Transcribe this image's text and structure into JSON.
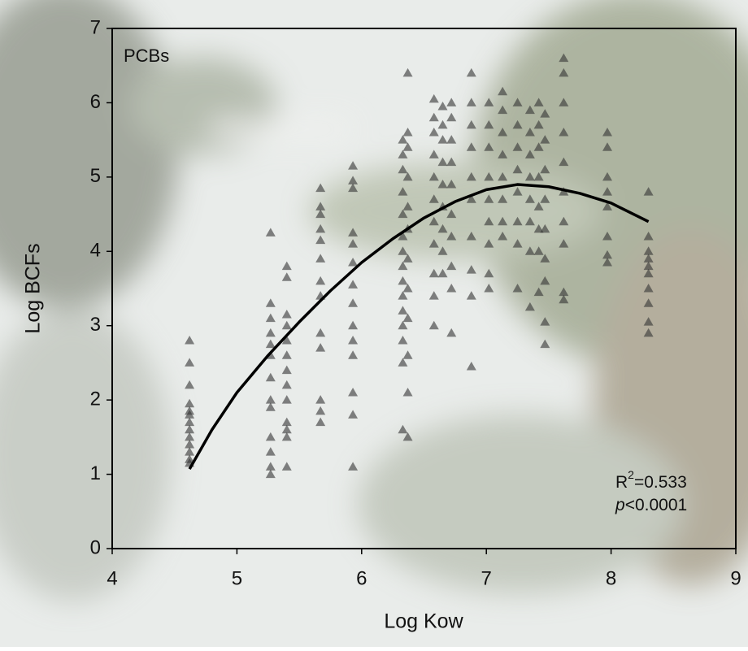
{
  "chart_data": {
    "type": "scatter",
    "annotation": "PCBs",
    "r_squared": {
      "symbol": "R",
      "exponent": "2",
      "text": "=0.533"
    },
    "p_value": {
      "symbol": "p",
      "text": "<0.0001"
    },
    "x_label": "Log Kow",
    "y_label": "Log BCFs",
    "xlim": [
      4,
      9
    ],
    "xticks": [
      4,
      5,
      6,
      7,
      8,
      9
    ],
    "ylim": [
      0,
      7
    ],
    "yticks": [
      0,
      1,
      2,
      3,
      4,
      5,
      6,
      7
    ],
    "color": "#333333",
    "x": [
      4.62,
      4.62,
      4.62,
      4.62,
      4.62,
      4.62,
      4.62,
      4.62,
      4.62,
      4.62,
      4.62,
      4.62,
      4.62,
      5.27,
      5.27,
      5.27,
      5.27,
      5.27,
      5.27,
      5.27,
      5.27,
      5.27,
      5.27,
      5.27,
      5.27,
      5.27,
      5.4,
      5.4,
      5.4,
      5.4,
      5.4,
      5.4,
      5.4,
      5.4,
      5.4,
      5.4,
      5.4,
      5.4,
      5.4,
      5.67,
      5.67,
      5.67,
      5.67,
      5.67,
      5.67,
      5.67,
      5.67,
      5.67,
      5.67,
      5.67,
      5.67,
      5.67,
      5.93,
      5.93,
      5.93,
      5.93,
      5.93,
      5.93,
      5.93,
      5.93,
      5.93,
      5.93,
      5.93,
      5.93,
      5.93,
      5.93,
      6.33,
      6.33,
      6.33,
      6.33,
      6.33,
      6.33,
      6.33,
      6.33,
      6.33,
      6.33,
      6.33,
      6.33,
      6.33,
      6.33,
      6.33,
      6.37,
      6.37,
      6.37,
      6.37,
      6.37,
      6.37,
      6.37,
      6.37,
      6.37,
      6.37,
      6.37,
      6.37,
      6.58,
      6.58,
      6.58,
      6.58,
      6.58,
      6.58,
      6.58,
      6.58,
      6.58,
      6.58,
      6.58,
      6.65,
      6.65,
      6.65,
      6.65,
      6.65,
      6.65,
      6.65,
      6.65,
      6.65,
      6.72,
      6.72,
      6.72,
      6.72,
      6.72,
      6.72,
      6.72,
      6.72,
      6.72,
      6.72,
      6.88,
      6.88,
      6.88,
      6.88,
      6.88,
      6.88,
      6.88,
      6.88,
      6.88,
      6.88,
      7.02,
      7.02,
      7.02,
      7.02,
      7.02,
      7.02,
      7.02,
      7.02,
      7.02,
      7.13,
      7.13,
      7.13,
      7.13,
      7.13,
      7.13,
      7.13,
      7.13,
      7.25,
      7.25,
      7.25,
      7.25,
      7.25,
      7.25,
      7.25,
      7.25,
      7.35,
      7.35,
      7.35,
      7.35,
      7.35,
      7.35,
      7.35,
      7.35,
      7.42,
      7.42,
      7.42,
      7.42,
      7.42,
      7.42,
      7.42,
      7.42,
      7.47,
      7.47,
      7.47,
      7.47,
      7.47,
      7.47,
      7.47,
      7.47,
      7.47,
      7.62,
      7.62,
      7.62,
      7.62,
      7.62,
      7.62,
      7.62,
      7.62,
      7.62,
      7.62,
      7.97,
      7.97,
      7.97,
      7.97,
      7.97,
      7.97,
      7.97,
      7.97,
      8.3,
      8.3,
      8.3,
      8.3,
      8.3,
      8.3,
      8.3,
      8.3,
      8.3,
      8.3
    ],
    "values": [
      2.8,
      2.5,
      2.2,
      1.95,
      1.85,
      1.8,
      1.7,
      1.6,
      1.5,
      1.4,
      1.3,
      1.2,
      1.15,
      4.25,
      3.3,
      3.1,
      2.9,
      2.75,
      2.6,
      2.3,
      2.0,
      1.9,
      1.5,
      1.3,
      1.1,
      1.0,
      3.8,
      3.65,
      3.15,
      3.0,
      2.8,
      2.6,
      2.4,
      2.2,
      2.0,
      1.7,
      1.6,
      1.5,
      1.1,
      4.85,
      4.6,
      4.5,
      4.3,
      4.15,
      3.9,
      3.6,
      3.4,
      2.9,
      2.7,
      2.0,
      1.85,
      1.7,
      5.15,
      4.95,
      4.85,
      4.25,
      4.1,
      3.85,
      3.55,
      3.3,
      3.0,
      2.8,
      2.6,
      2.1,
      1.8,
      1.1,
      5.5,
      5.3,
      5.1,
      4.8,
      4.5,
      4.2,
      4.0,
      3.8,
      3.6,
      3.4,
      3.2,
      3.0,
      2.8,
      2.5,
      1.6,
      6.4,
      5.6,
      5.4,
      5.0,
      4.6,
      4.3,
      3.9,
      3.5,
      3.1,
      2.6,
      2.1,
      1.5,
      6.05,
      5.8,
      5.6,
      5.3,
      5.0,
      4.7,
      4.4,
      4.1,
      3.7,
      3.4,
      3.0,
      5.95,
      5.7,
      5.5,
      5.2,
      4.9,
      4.6,
      4.3,
      4.0,
      3.7,
      6.0,
      5.8,
      5.5,
      5.2,
      4.9,
      4.5,
      4.2,
      3.8,
      3.5,
      2.9,
      6.4,
      6.0,
      5.7,
      5.4,
      5.0,
      4.7,
      4.2,
      3.75,
      3.4,
      2.45,
      6.0,
      5.7,
      5.4,
      5.0,
      4.7,
      4.4,
      4.1,
      3.7,
      3.5,
      6.15,
      5.9,
      5.6,
      5.3,
      5.0,
      4.7,
      4.4,
      4.2,
      6.0,
      5.7,
      5.4,
      5.1,
      4.8,
      4.4,
      4.1,
      3.5,
      5.9,
      5.6,
      5.3,
      5.0,
      4.7,
      4.4,
      4.0,
      3.25,
      6.0,
      5.7,
      5.4,
      5.0,
      4.6,
      4.3,
      4.0,
      3.45,
      5.85,
      5.5,
      5.1,
      4.7,
      4.3,
      3.9,
      3.6,
      3.05,
      2.75,
      6.6,
      6.4,
      6.0,
      5.6,
      5.2,
      4.8,
      4.4,
      4.1,
      3.45,
      3.35,
      5.6,
      5.4,
      5.0,
      4.8,
      4.6,
      4.2,
      3.95,
      3.85,
      4.8,
      4.2,
      4.0,
      3.9,
      3.8,
      3.7,
      3.5,
      3.3,
      3.05,
      2.9
    ],
    "fit": {
      "color": "#000000",
      "x": [
        4.62,
        4.8,
        5.0,
        5.25,
        5.5,
        5.75,
        6.0,
        6.25,
        6.5,
        6.75,
        7.0,
        7.25,
        7.5,
        7.75,
        8.0,
        8.3
      ],
      "values": [
        1.07,
        1.6,
        2.1,
        2.6,
        3.05,
        3.47,
        3.85,
        4.17,
        4.45,
        4.67,
        4.83,
        4.9,
        4.87,
        4.78,
        4.65,
        4.4
      ]
    }
  }
}
